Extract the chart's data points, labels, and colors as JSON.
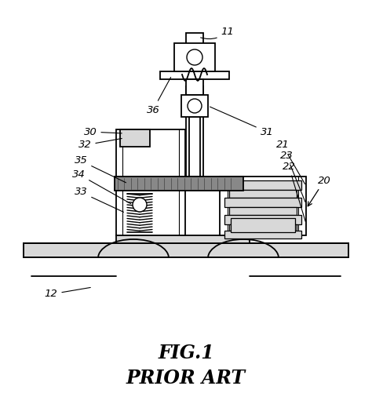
{
  "title_line1": "FIG.1",
  "title_line2": "PRIOR ART",
  "title_fontsize": 17,
  "bg_color": "#ffffff",
  "line_color": "#000000",
  "gray_dark": "#888888",
  "gray_med": "#b0b0b0",
  "gray_light": "#d8d8d8"
}
